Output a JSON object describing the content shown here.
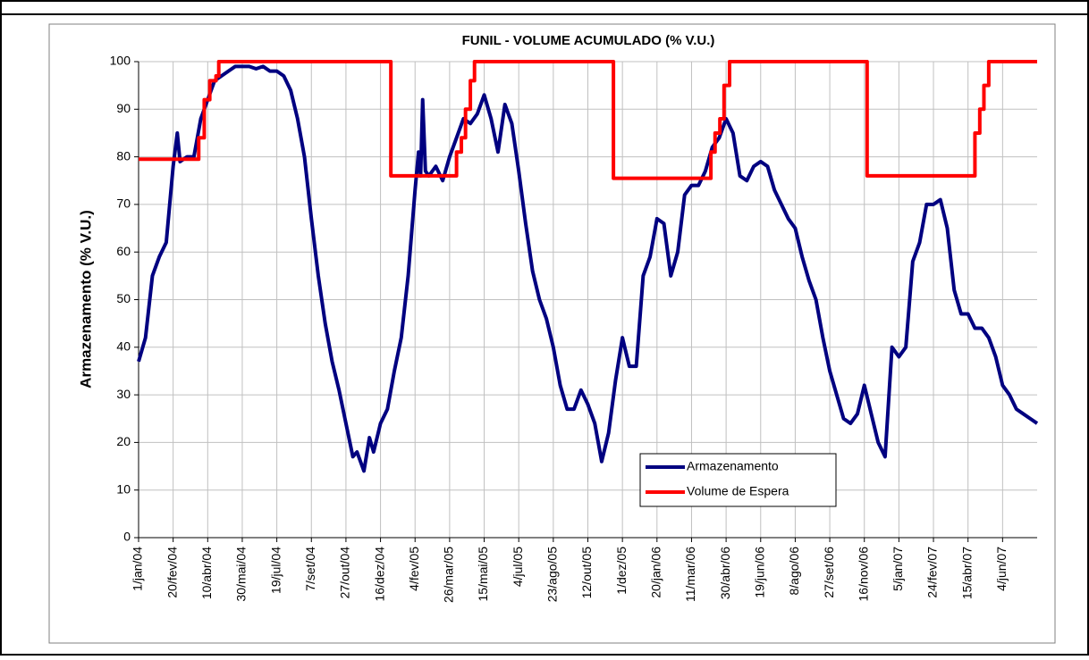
{
  "chart_data": {
    "type": "line",
    "title": "FUNIL - VOLUME ACUMULADO (% V.U.)",
    "y_label": "Armazenamento (% V.U.)",
    "xlim": [
      "2004-01-01",
      "2007-07-24"
    ],
    "xticks": [
      {
        "value": "2004-01-01",
        "label": "1/jan/04"
      },
      {
        "value": "2004-02-20",
        "label": "20/fev/04"
      },
      {
        "value": "2004-04-10",
        "label": "10/abr/04"
      },
      {
        "value": "2004-05-30",
        "label": "30/mai/04"
      },
      {
        "value": "2004-07-19",
        "label": "19/jul/04"
      },
      {
        "value": "2004-09-07",
        "label": "7/set/04"
      },
      {
        "value": "2004-10-27",
        "label": "27/out/04"
      },
      {
        "value": "2004-12-16",
        "label": "16/dez/04"
      },
      {
        "value": "2005-02-04",
        "label": "4/fev/05"
      },
      {
        "value": "2005-03-26",
        "label": "26/mar/05"
      },
      {
        "value": "2005-05-15",
        "label": "15/mai/05"
      },
      {
        "value": "2005-07-04",
        "label": "4/jul/05"
      },
      {
        "value": "2005-08-23",
        "label": "23/ago/05"
      },
      {
        "value": "2005-10-12",
        "label": "12/out/05"
      },
      {
        "value": "2005-12-01",
        "label": "1/dez/05"
      },
      {
        "value": "2006-01-20",
        "label": "20/jan/06"
      },
      {
        "value": "2006-03-11",
        "label": "11/mar/06"
      },
      {
        "value": "2006-04-30",
        "label": "30/abr/06"
      },
      {
        "value": "2006-06-19",
        "label": "19/jun/06"
      },
      {
        "value": "2006-08-08",
        "label": "8/ago/06"
      },
      {
        "value": "2006-09-27",
        "label": "27/set/06"
      },
      {
        "value": "2006-11-16",
        "label": "16/nov/06"
      },
      {
        "value": "2007-01-05",
        "label": "5/jan/07"
      },
      {
        "value": "2007-02-24",
        "label": "24/fev/07"
      },
      {
        "value": "2007-04-15",
        "label": "15/abr/07"
      },
      {
        "value": "2007-06-04",
        "label": "4/jun/07"
      }
    ],
    "ylim": [
      0,
      100
    ],
    "yticks": [
      0,
      10,
      20,
      30,
      40,
      50,
      60,
      70,
      80,
      90,
      100
    ],
    "grid": true,
    "legend": "lower-center",
    "series": [
      {
        "name": "Armazenamento",
        "color": "#000080",
        "x": [
          "2004-01-01",
          "2004-01-11",
          "2004-01-21",
          "2004-01-31",
          "2004-02-10",
          "2004-02-20",
          "2004-02-26",
          "2004-03-01",
          "2004-03-11",
          "2004-03-21",
          "2004-03-31",
          "2004-04-10",
          "2004-04-20",
          "2004-04-30",
          "2004-05-10",
          "2004-05-20",
          "2004-05-30",
          "2004-06-09",
          "2004-06-19",
          "2004-06-29",
          "2004-07-09",
          "2004-07-19",
          "2004-07-29",
          "2004-08-08",
          "2004-08-18",
          "2004-08-28",
          "2004-09-07",
          "2004-09-17",
          "2004-09-27",
          "2004-10-07",
          "2004-10-17",
          "2004-10-27",
          "2004-11-06",
          "2004-11-12",
          "2004-11-22",
          "2004-11-30",
          "2004-12-06",
          "2004-12-16",
          "2004-12-26",
          "2005-01-05",
          "2005-01-15",
          "2005-01-25",
          "2005-02-04",
          "2005-02-09",
          "2005-02-12",
          "2005-02-15",
          "2005-02-19",
          "2005-02-24",
          "2005-03-06",
          "2005-03-16",
          "2005-03-26",
          "2005-04-05",
          "2005-04-15",
          "2005-04-25",
          "2005-05-05",
          "2005-05-15",
          "2005-05-25",
          "2005-06-04",
          "2005-06-14",
          "2005-06-24",
          "2005-07-04",
          "2005-07-14",
          "2005-07-24",
          "2005-08-03",
          "2005-08-13",
          "2005-08-23",
          "2005-09-02",
          "2005-09-12",
          "2005-09-22",
          "2005-10-02",
          "2005-10-12",
          "2005-10-22",
          "2005-11-01",
          "2005-11-11",
          "2005-11-21",
          "2005-12-01",
          "2005-12-11",
          "2005-12-21",
          "2005-12-31",
          "2006-01-10",
          "2006-01-20",
          "2006-01-30",
          "2006-02-09",
          "2006-02-19",
          "2006-03-01",
          "2006-03-11",
          "2006-03-21",
          "2006-03-31",
          "2006-04-10",
          "2006-04-20",
          "2006-04-30",
          "2006-05-10",
          "2006-05-20",
          "2006-05-30",
          "2006-06-09",
          "2006-06-19",
          "2006-06-29",
          "2006-07-09",
          "2006-07-19",
          "2006-07-29",
          "2006-08-08",
          "2006-08-18",
          "2006-08-28",
          "2006-09-07",
          "2006-09-17",
          "2006-09-27",
          "2006-10-07",
          "2006-10-17",
          "2006-10-27",
          "2006-11-06",
          "2006-11-16",
          "2006-11-26",
          "2006-12-06",
          "2006-12-16",
          "2006-12-26",
          "2007-01-05",
          "2007-01-15",
          "2007-01-25",
          "2007-02-04",
          "2007-02-14",
          "2007-02-24",
          "2007-03-06",
          "2007-03-16",
          "2007-03-26",
          "2007-04-05",
          "2007-04-15",
          "2007-04-25",
          "2007-05-05",
          "2007-05-15",
          "2007-05-25",
          "2007-06-04",
          "2007-06-14",
          "2007-06-24",
          "2007-07-04",
          "2007-07-14",
          "2007-07-24"
        ],
        "values": [
          37,
          42,
          55,
          59,
          62,
          78,
          85,
          79,
          80,
          80,
          88,
          92,
          96,
          97,
          98,
          99,
          99,
          99,
          98.5,
          99,
          98,
          98,
          97,
          94,
          88,
          80,
          67,
          55,
          45,
          37,
          31,
          24,
          17,
          18,
          14,
          21,
          18,
          24,
          27,
          35,
          42,
          55,
          73,
          81,
          76,
          92,
          77,
          76,
          78,
          75,
          80,
          84,
          88,
          87,
          89,
          93,
          88,
          81,
          91,
          87,
          77,
          66,
          56,
          50,
          46,
          40,
          32,
          27,
          27,
          31,
          28,
          24,
          16,
          22,
          33,
          42,
          36,
          36,
          55,
          59,
          67,
          66,
          55,
          60,
          72,
          74,
          74,
          77,
          82,
          84,
          88,
          85,
          76,
          75,
          78,
          79,
          78,
          73,
          70,
          67,
          65,
          59,
          54,
          50,
          42,
          35,
          30,
          25,
          24,
          26,
          32,
          26,
          20,
          17,
          40,
          38,
          40,
          58,
          62,
          70,
          70,
          71,
          65,
          52,
          47,
          47,
          44,
          44,
          42,
          38,
          32,
          30,
          27,
          26,
          25,
          24
        ]
      },
      {
        "name": "Volume de Espera",
        "color": "#ff0000",
        "x": [
          "2004-01-01",
          "2004-03-28",
          "2004-03-28",
          "2004-04-05",
          "2004-04-05",
          "2004-04-13",
          "2004-04-13",
          "2004-04-22",
          "2004-04-22",
          "2004-04-26",
          "2004-04-26",
          "2004-12-31",
          "2004-12-31",
          "2005-04-05",
          "2005-04-05",
          "2005-04-12",
          "2005-04-12",
          "2005-04-18",
          "2005-04-18",
          "2005-04-25",
          "2005-04-25",
          "2005-05-01",
          "2005-05-01",
          "2005-11-18",
          "2005-11-18",
          "2006-04-08",
          "2006-04-08",
          "2006-04-14",
          "2006-04-14",
          "2006-04-21",
          "2006-04-21",
          "2006-04-27",
          "2006-04-27",
          "2006-05-05",
          "2006-05-05",
          "2006-11-20",
          "2006-11-20",
          "2007-04-25",
          "2007-04-25",
          "2007-05-02",
          "2007-05-02",
          "2007-05-08",
          "2007-05-08",
          "2007-05-15",
          "2007-05-15",
          "2007-07-24"
        ],
        "values": [
          79.5,
          79.5,
          84,
          84,
          92,
          92,
          96,
          96,
          97,
          97,
          100,
          100,
          76,
          76,
          81,
          81,
          84,
          84,
          90,
          90,
          96,
          96,
          100,
          100,
          75.5,
          75.5,
          81,
          81,
          85,
          85,
          88,
          88,
          95,
          95,
          100,
          100,
          76,
          76,
          85,
          85,
          90,
          90,
          95,
          95,
          100,
          100
        ]
      }
    ]
  }
}
